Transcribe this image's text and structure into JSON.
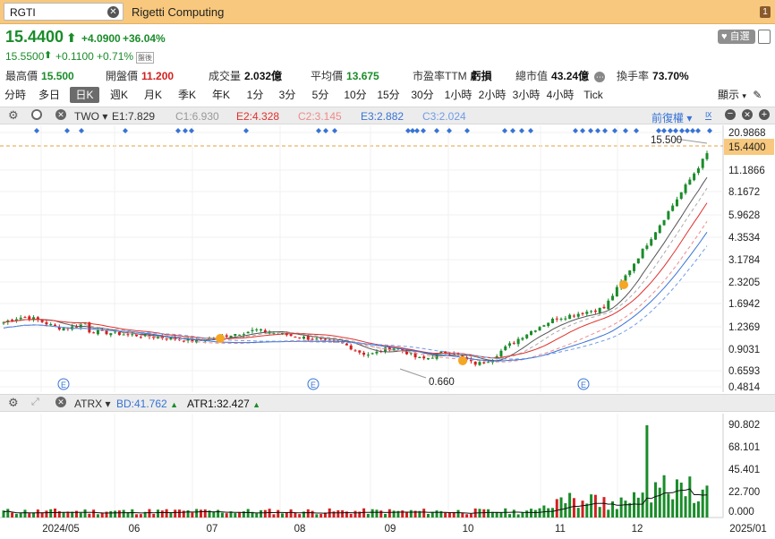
{
  "titlebar": {
    "symbol": "RGTI",
    "company": "Rigetti Computing",
    "window_badge": "1"
  },
  "quote": {
    "price": "15.4400",
    "change": "+4.0900",
    "change_pct": "+36.04%",
    "ext_price": "15.5500",
    "ext_change": "+0.1100",
    "ext_change_pct": "+0.71%",
    "watch_label": "自選",
    "ext_tag": "盤後"
  },
  "stats": [
    {
      "label": "最高價",
      "value": "15.500",
      "color": "green"
    },
    {
      "label": "開盤價",
      "value": "11.200",
      "color": "red"
    },
    {
      "label": "成交量",
      "value": "2.032億",
      "color": "black"
    },
    {
      "label": "平均價",
      "value": "13.675",
      "color": "green"
    },
    {
      "label": "市盈率TTM",
      "value": "虧損",
      "color": "black"
    },
    {
      "label": "總市值",
      "value": "43.24億",
      "color": "black"
    },
    {
      "label": "換手率",
      "value": "73.70%",
      "color": "black"
    }
  ],
  "tabs": [
    "分時",
    "多日",
    "日K",
    "週K",
    "月K",
    "季K",
    "年K",
    "1分",
    "3分",
    "5分",
    "10分",
    "15分",
    "30分",
    "1小時",
    "2小時",
    "3小時",
    "4小時",
    "Tick"
  ],
  "active_tab": "日K",
  "display_menu": "顯示",
  "main_indicator": {
    "name": "TWO",
    "E1": "E1:7.829",
    "C1": "C1:6.930",
    "E2": "E2:4.328",
    "C2": "C2:3.145",
    "E3": "E3:2.882",
    "C3": "C3:2.024",
    "adjust": "前復權"
  },
  "price_axis": [
    "20.9868",
    "15.4400",
    "11.1866",
    "8.1672",
    "5.9628",
    "4.3534",
    "3.1784",
    "2.3205",
    "1.6942",
    "1.2369",
    "0.9031",
    "0.6593",
    "0.4814"
  ],
  "annotations": {
    "high": "15.500",
    "low": "0.660"
  },
  "sub_indicator": {
    "name": "ATRX",
    "BD": "BD:41.762",
    "ATR1": "ATR1:32.427"
  },
  "volume_axis": [
    "90.802",
    "68.101",
    "45.401",
    "22.700",
    "0.000"
  ],
  "time_axis": [
    "2024/05",
    "06",
    "07",
    "08",
    "09",
    "10",
    "11",
    "12",
    "2025/01"
  ],
  "colors": {
    "up": "#1a8c2a",
    "down": "#d32020",
    "titlebar": "#f7c87d"
  }
}
